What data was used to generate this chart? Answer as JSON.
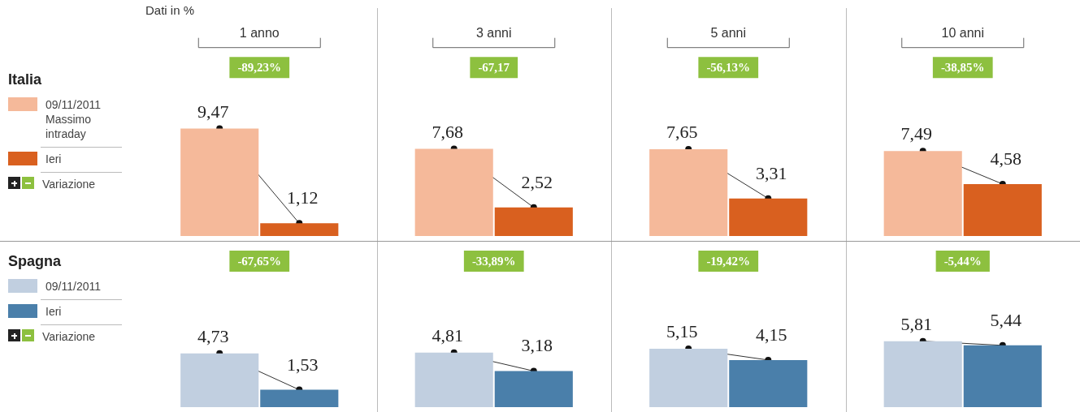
{
  "chart_data": [
    {
      "type": "bar",
      "title": "Dati in %",
      "legend_title": "Italia",
      "legend": "left",
      "grid": "x",
      "categories": [
        "1 anno",
        "3 anni",
        "5 anni",
        "10 anni"
      ],
      "series": [
        {
          "name": "09/11/2011 Massimo intraday",
          "color": "#f5b99a",
          "values": [
            9.47,
            7.68,
            7.65,
            7.49
          ],
          "value_labels": [
            "9,47",
            "7,68",
            "7,65",
            "7,49"
          ]
        },
        {
          "name": "Ieri",
          "color": "#d9601f",
          "values": [
            1.12,
            2.52,
            3.31,
            4.58
          ],
          "value_labels": [
            "1,12",
            "2,52",
            "3,31",
            "4,58"
          ]
        }
      ],
      "annotations": [
        "-89,23%",
        "-67,17",
        "-56,13%",
        "-38,85%",
        "Variazione"
      ]
    },
    {
      "type": "bar",
      "legend_title": "Spagna",
      "legend": "left",
      "grid": "x",
      "tick_labels": false,
      "categories": [
        null,
        null,
        null,
        null
      ],
      "series": [
        {
          "name": "09/11/2011",
          "color": "#c1cfe0",
          "values": [
            4.73,
            4.81,
            5.15,
            5.81
          ],
          "value_labels": [
            "4,73",
            "4,81",
            "5,15",
            "5,81"
          ]
        },
        {
          "name": "Ieri",
          "color": "#4a7faa",
          "values": [
            1.53,
            3.18,
            4.15,
            5.44
          ],
          "value_labels": [
            "1,53",
            "3,18",
            "4,15",
            "5,44"
          ]
        }
      ],
      "annotations": [
        "-67,65%",
        "-33,89%",
        "-19,42%",
        "-5,44%",
        "Variazione"
      ]
    }
  ]
}
